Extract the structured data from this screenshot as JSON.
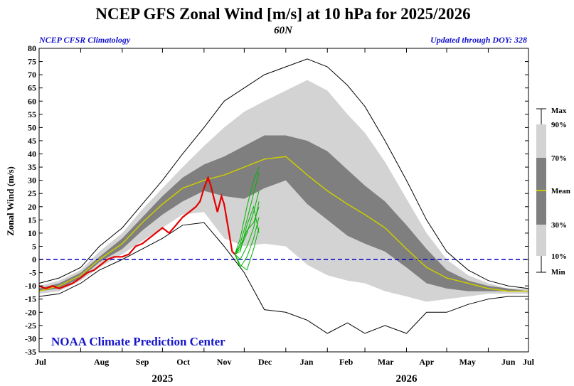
{
  "chart_data": {
    "type": "area",
    "title": "NCEP GFS Zonal Wind [m/s] at 10 hPa for 2025/2026",
    "subtitle": "60N",
    "note_left": "NCEP CFSR Climatology",
    "note_right": "Updated through DOY: 328",
    "watermark": "NOAA Climate Prediction Center",
    "ylabel": "Zonal Wind (m/s)",
    "ylim": [
      -35,
      80
    ],
    "yticks": [
      "80",
      "75",
      "70",
      "65",
      "60",
      "55",
      "50",
      "45",
      "40",
      "35",
      "30",
      "25",
      "20",
      "15",
      "10",
      "5",
      "0",
      "-5",
      "-10",
      "-15",
      "-20",
      "-25",
      "-30",
      "-35"
    ],
    "xlim": [
      0,
      365
    ],
    "month_labels": [
      "Jul",
      "Aug",
      "Sep",
      "Oct",
      "Nov",
      "Dec",
      "Jan",
      "Feb",
      "Mar",
      "Apr",
      "May",
      "Jun",
      "Jul"
    ],
    "month_starts": [
      0,
      31,
      62,
      92,
      123,
      153,
      184,
      215,
      243,
      274,
      304,
      335,
      365
    ],
    "year_labels": [
      {
        "text": "2025",
        "day": 92
      },
      {
        "text": "2026",
        "day": 274
      }
    ],
    "zero_line": 0,
    "legend": {
      "max": "Max",
      "p90": "90%",
      "p70": "70%",
      "mean": "Mean",
      "p30": "30%",
      "p10": "10%",
      "min": "Min"
    },
    "colors": {
      "max_min_line": "#000000",
      "band_10_90": "#d3d3d3",
      "band_30_70": "#7f7f7f",
      "mean": "#cccc00",
      "observed": "#e60000",
      "forecast": "#00b400",
      "zero_line": "#0000cc",
      "text_blue": "#1414cc"
    },
    "climatology": {
      "day": [
        0,
        15,
        31,
        45,
        62,
        77,
        92,
        107,
        123,
        138,
        153,
        168,
        184,
        200,
        215,
        230,
        243,
        258,
        274,
        289,
        304,
        320,
        335,
        350,
        365
      ],
      "max": [
        -9,
        -7,
        -3,
        5,
        12,
        21,
        30,
        40,
        50,
        60,
        65,
        70,
        73,
        76,
        73,
        66,
        58,
        45,
        30,
        15,
        3,
        -4,
        -8,
        -10,
        -11
      ],
      "p90": [
        -10,
        -8,
        -4,
        3,
        10,
        19,
        27,
        35,
        43,
        50,
        56,
        60,
        64,
        68,
        64,
        55,
        48,
        37,
        23,
        10,
        0,
        -6,
        -9,
        -11,
        -11
      ],
      "p70": [
        -11,
        -9,
        -5,
        1,
        8,
        16,
        24,
        31,
        36,
        39,
        43,
        47,
        47,
        45,
        41,
        34,
        28,
        22,
        13,
        4,
        -4,
        -8,
        -10,
        -11,
        -12
      ],
      "mean": [
        -12,
        -10,
        -6,
        0,
        6,
        14,
        21,
        27,
        30,
        32,
        35,
        38,
        39,
        32,
        26,
        21,
        17,
        12,
        4,
        -3,
        -7,
        -9,
        -11,
        -12,
        -12
      ],
      "p30": [
        -12,
        -11,
        -7,
        -1,
        4,
        11,
        17,
        22,
        26,
        24,
        23,
        27,
        30,
        21,
        15,
        9,
        6,
        3,
        -3,
        -9,
        -11,
        -12,
        -12,
        -12,
        -12
      ],
      "p10": [
        -13,
        -12,
        -8,
        -3,
        2,
        7,
        12,
        17,
        18,
        8,
        5,
        6,
        5,
        -2,
        -6,
        -8,
        -9,
        -12,
        -14,
        -16,
        -15,
        -14,
        -13,
        -13,
        -13
      ],
      "min": [
        -14,
        -13,
        -9,
        -4,
        0,
        4,
        8,
        13,
        14,
        5,
        -5,
        -19,
        -20,
        -23,
        -28,
        -24,
        -28,
        -25,
        -28,
        -20,
        -20,
        -17,
        -15,
        -14,
        -14
      ]
    },
    "observed": {
      "name": "2025/2026",
      "day": [
        0,
        5,
        10,
        15,
        20,
        25,
        31,
        36,
        41,
        46,
        51,
        56,
        62,
        67,
        72,
        77,
        82,
        87,
        92,
        97,
        102,
        107,
        112,
        117,
        120,
        123,
        126,
        128,
        131,
        133,
        136,
        138,
        140,
        142,
        144,
        146
      ],
      "value": [
        -10,
        -11,
        -10,
        -11,
        -10,
        -9,
        -7,
        -5,
        -4,
        -2,
        0,
        1,
        1,
        2,
        5,
        6,
        8,
        10,
        12,
        10,
        13,
        16,
        18,
        20,
        22,
        27,
        31,
        28,
        22,
        18,
        24,
        21,
        15,
        9,
        3,
        2
      ]
    },
    "forecast": [
      {
        "day": [
          146,
          150,
          155,
          160,
          164
        ],
        "value": [
          2,
          8,
          20,
          30,
          35
        ]
      },
      {
        "day": [
          146,
          150,
          155,
          160,
          164
        ],
        "value": [
          2,
          6,
          15,
          25,
          33
        ]
      },
      {
        "day": [
          146,
          150,
          155,
          160,
          164
        ],
        "value": [
          2,
          4,
          10,
          18,
          26
        ]
      },
      {
        "day": [
          146,
          150,
          155,
          160,
          164
        ],
        "value": [
          2,
          0,
          5,
          12,
          22
        ]
      },
      {
        "day": [
          146,
          150,
          155,
          160,
          164
        ],
        "value": [
          2,
          -3,
          1,
          8,
          16
        ]
      },
      {
        "day": [
          146,
          150,
          155,
          160,
          164
        ],
        "value": [
          2,
          3,
          13,
          20,
          10
        ]
      },
      {
        "day": [
          146,
          150,
          155,
          160,
          164
        ],
        "value": [
          2,
          -2,
          -4,
          4,
          12
        ]
      },
      {
        "day": [
          146,
          150,
          155,
          160,
          164
        ],
        "value": [
          2,
          5,
          11,
          14,
          20
        ]
      }
    ]
  }
}
